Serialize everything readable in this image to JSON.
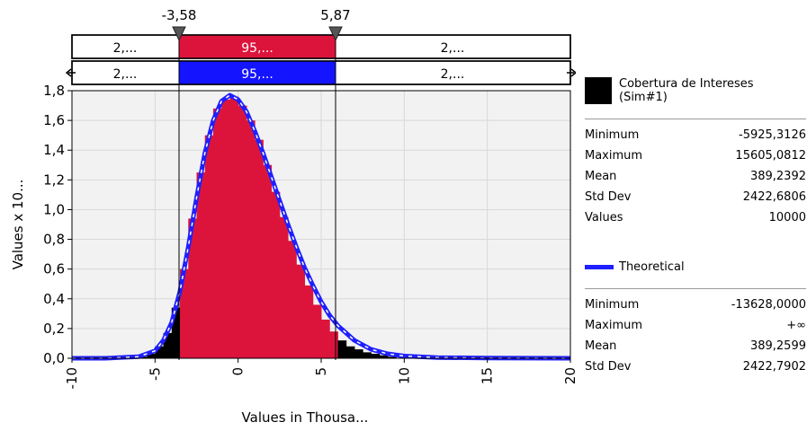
{
  "chart_data": {
    "type": "bar",
    "title": "",
    "xlabel": "Values in Thousa...",
    "ylabel": "Values x 10...",
    "xlim": [
      -10,
      20
    ],
    "ylim": [
      0,
      1.8
    ],
    "x_ticks": [
      "-10",
      "-5",
      "0",
      "5",
      "10",
      "15",
      "20"
    ],
    "y_ticks": [
      "0,0",
      "0,2",
      "0,4",
      "0,6",
      "0,8",
      "1,0",
      "1,2",
      "1,4",
      "1,6",
      "1,8"
    ],
    "grid": true,
    "delimiters": {
      "left": "-3,58",
      "right": "5,87"
    },
    "band_top": {
      "left": "2,...",
      "mid": "95,...",
      "right": "2,..."
    },
    "band_bottom": {
      "left": "2,...",
      "mid": "95,...",
      "right": "2,..."
    },
    "histogram": {
      "name": "Cobertura de Intereses (Sim#1)",
      "color": "#dc143c",
      "bins_x": [
        -6.0,
        -5.5,
        -5.0,
        -4.5,
        -4.0,
        -3.5,
        -3.0,
        -2.5,
        -2.0,
        -1.5,
        -1.0,
        -0.5,
        0.0,
        0.5,
        1.0,
        1.5,
        2.0,
        2.5,
        3.0,
        3.5,
        4.0,
        4.5,
        5.0,
        5.5,
        6.0,
        6.5,
        7.0,
        7.5,
        8.0,
        8.5,
        9.0
      ],
      "values": [
        0.01,
        0.03,
        0.08,
        0.17,
        0.34,
        0.6,
        0.94,
        1.25,
        1.5,
        1.68,
        1.74,
        1.76,
        1.7,
        1.6,
        1.47,
        1.3,
        1.12,
        0.95,
        0.79,
        0.63,
        0.49,
        0.36,
        0.26,
        0.18,
        0.12,
        0.08,
        0.06,
        0.04,
        0.03,
        0.02,
        0.01
      ]
    },
    "theoretical": {
      "name": "Theoretical",
      "color": "#1f1fff",
      "x": [
        -10,
        -8,
        -6,
        -5,
        -4.5,
        -4,
        -3.5,
        -3,
        -2.5,
        -2,
        -1.5,
        -1,
        -0.5,
        0,
        0.5,
        1,
        1.5,
        2,
        2.5,
        3,
        3.5,
        4,
        4.5,
        5,
        5.5,
        6,
        7,
        8,
        9,
        10,
        12,
        15,
        20
      ],
      "y": [
        0.0,
        0.0,
        0.01,
        0.05,
        0.12,
        0.24,
        0.45,
        0.75,
        1.08,
        1.38,
        1.6,
        1.73,
        1.77,
        1.74,
        1.66,
        1.53,
        1.38,
        1.22,
        1.06,
        0.9,
        0.75,
        0.61,
        0.49,
        0.38,
        0.29,
        0.22,
        0.12,
        0.06,
        0.03,
        0.015,
        0.005,
        0.001,
        0.0
      ]
    }
  },
  "legend": {
    "sim": {
      "name": "Cobertura de Intereses",
      "name2": "(Sim#1)",
      "stats": [
        {
          "label": "Minimum",
          "value": "-5925,3126"
        },
        {
          "label": "Maximum",
          "value": "15605,0812"
        },
        {
          "label": "Mean",
          "value": "389,2392"
        },
        {
          "label": "Std Dev",
          "value": "2422,6806"
        },
        {
          "label": "Values",
          "value": "10000"
        }
      ]
    },
    "theo": {
      "name": "Theoretical",
      "stats": [
        {
          "label": "Minimum",
          "value": "-13628,0000"
        },
        {
          "label": "Maximum",
          "value": "+∞"
        },
        {
          "label": "Mean",
          "value": "389,2599"
        },
        {
          "label": "Std Dev",
          "value": "2422,7902"
        }
      ]
    }
  }
}
